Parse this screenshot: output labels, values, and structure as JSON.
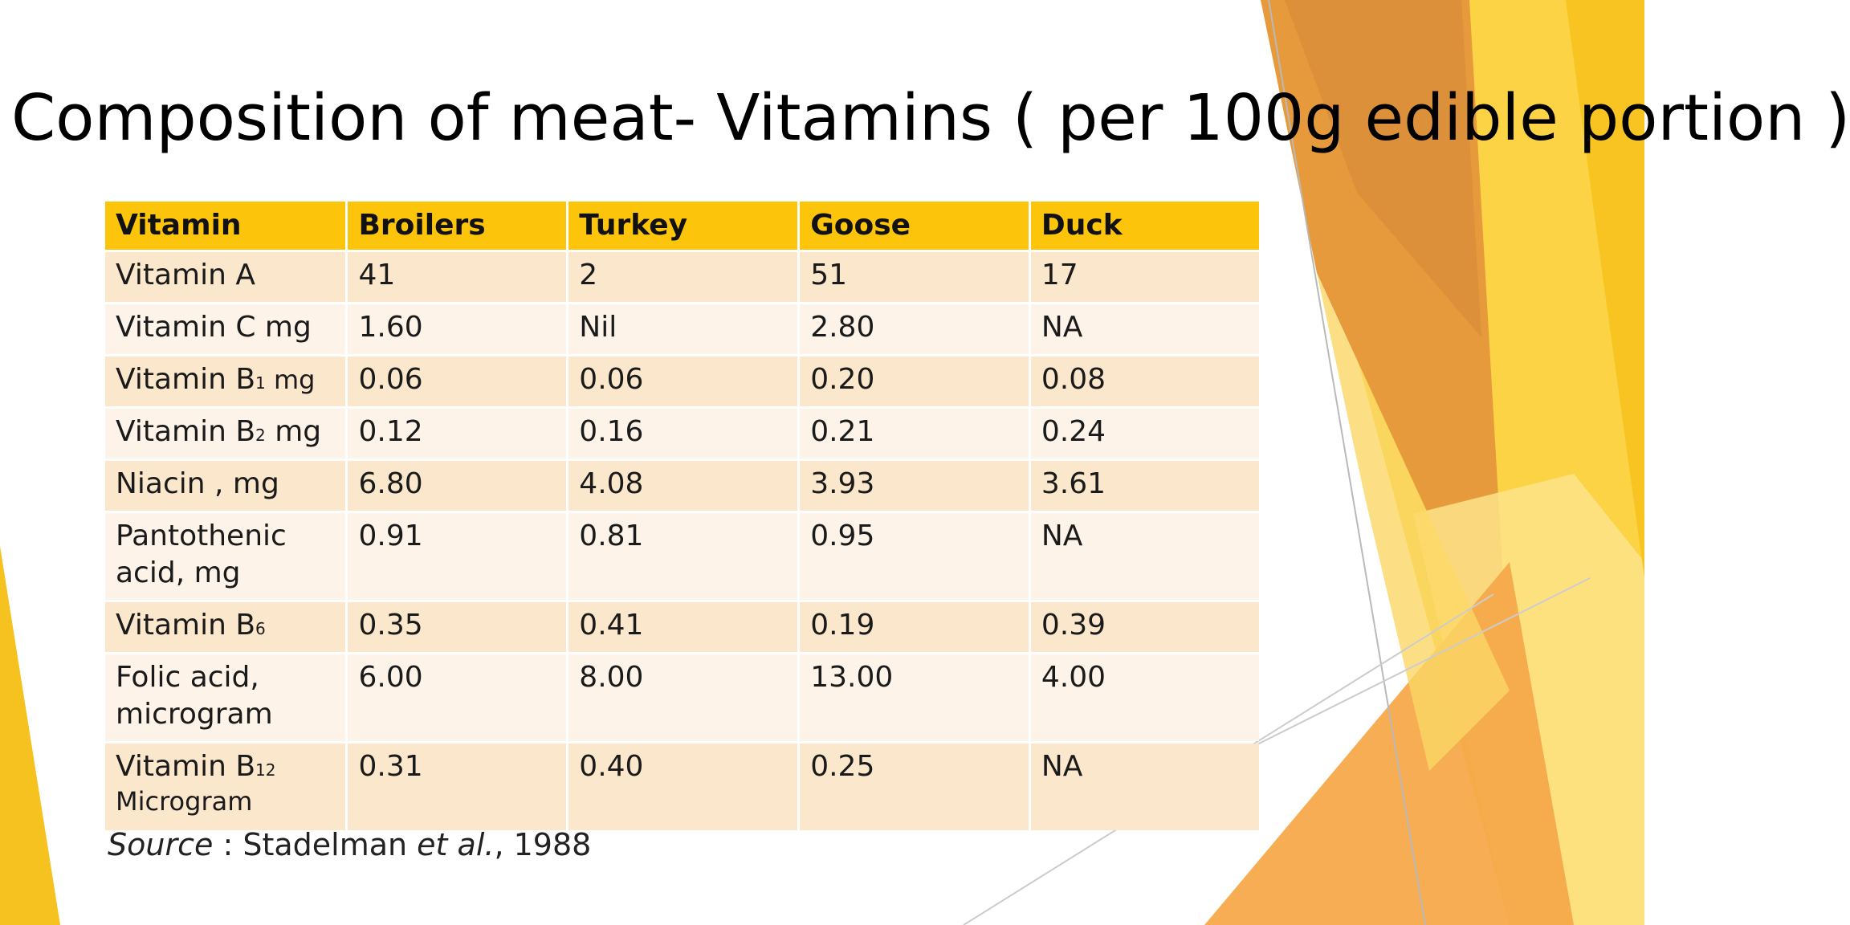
{
  "slide": {
    "title": "Composition of meat- Vitamins ( per 100g edible portion )",
    "colors": {
      "header_fill": "#fcc50c",
      "row_odd": "#fbe7cc",
      "row_even": "#fdf3e8",
      "accent_orange": "#f4a43a",
      "accent_yellow": "#fbcf2e"
    }
  },
  "table": {
    "headers": [
      "Vitamin",
      "Broilers",
      "Turkey",
      "Goose",
      "Duck"
    ],
    "rows": [
      {
        "name": "Vitamin A",
        "values": [
          "41",
          "2",
          "51",
          "17"
        ]
      },
      {
        "name": "Vitamin C mg",
        "values": [
          "1.60",
          "Nil",
          "2.80",
          "NA"
        ]
      },
      {
        "name_main": "Vitamin B",
        "name_sub": "1",
        "name_unit": " mg",
        "values": [
          "0.06",
          "0.06",
          "0.20",
          "0.08"
        ]
      },
      {
        "name_main": "Vitamin B",
        "name_sub": "2",
        "name_unit": " mg",
        "values": [
          "0.12",
          "0.16",
          "0.21",
          "0.24"
        ]
      },
      {
        "name": "Niacin , mg",
        "values": [
          "6.80",
          "4.08",
          "3.93",
          "3.61"
        ]
      },
      {
        "name_line1": "Pantothenic",
        "name_line2": "acid, mg",
        "values": [
          "0.91",
          "0.81",
          "0.95",
          "NA"
        ]
      },
      {
        "name_main": "Vitamin B",
        "name_sub": "6",
        "values": [
          "0.35",
          "0.41",
          "0.19",
          "0.39"
        ]
      },
      {
        "name_line1": "Folic acid,",
        "name_line2": "microgram",
        "values": [
          "6.00",
          "8.00",
          "13.00",
          "4.00"
        ]
      },
      {
        "name_main": "Vitamin B",
        "name_sub": "12",
        "name_line2": "Microgram",
        "values": [
          "0.31",
          "0.40",
          "0.25",
          "NA"
        ]
      }
    ]
  },
  "source": {
    "label": "Source",
    "separator": " : ",
    "author": "Stadelman ",
    "etal": "et al.",
    "year": ", 1988"
  }
}
